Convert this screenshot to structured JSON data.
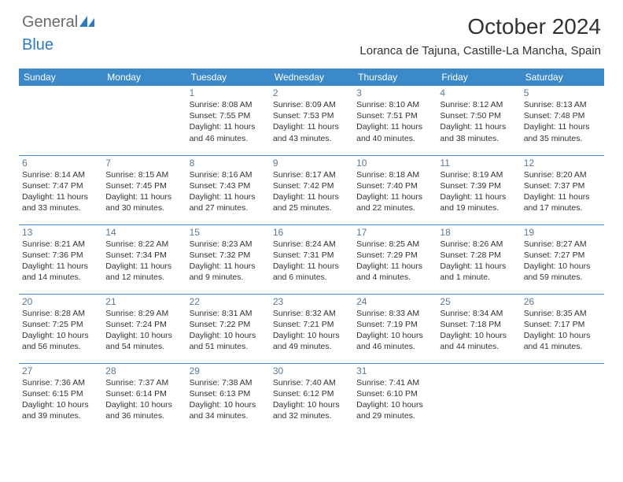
{
  "logo": {
    "text1": "General",
    "text2": "Blue"
  },
  "title": "October 2024",
  "location": "Loranca de Tajuna, Castille-La Mancha, Spain",
  "colors": {
    "header_bg": "#3b89c9",
    "header_text": "#ffffff",
    "daynum": "#5a7a95",
    "body_text": "#333333",
    "logo_gray": "#6a6a6a",
    "logo_blue": "#2d7bbf",
    "border": "#3b89c9",
    "page_bg": "#ffffff"
  },
  "weekdays": [
    "Sunday",
    "Monday",
    "Tuesday",
    "Wednesday",
    "Thursday",
    "Friday",
    "Saturday"
  ],
  "weeks": [
    [
      null,
      null,
      {
        "n": "1",
        "sr": "Sunrise: 8:08 AM",
        "ss": "Sunset: 7:55 PM",
        "d1": "Daylight: 11 hours",
        "d2": "and 46 minutes."
      },
      {
        "n": "2",
        "sr": "Sunrise: 8:09 AM",
        "ss": "Sunset: 7:53 PM",
        "d1": "Daylight: 11 hours",
        "d2": "and 43 minutes."
      },
      {
        "n": "3",
        "sr": "Sunrise: 8:10 AM",
        "ss": "Sunset: 7:51 PM",
        "d1": "Daylight: 11 hours",
        "d2": "and 40 minutes."
      },
      {
        "n": "4",
        "sr": "Sunrise: 8:12 AM",
        "ss": "Sunset: 7:50 PM",
        "d1": "Daylight: 11 hours",
        "d2": "and 38 minutes."
      },
      {
        "n": "5",
        "sr": "Sunrise: 8:13 AM",
        "ss": "Sunset: 7:48 PM",
        "d1": "Daylight: 11 hours",
        "d2": "and 35 minutes."
      }
    ],
    [
      {
        "n": "6",
        "sr": "Sunrise: 8:14 AM",
        "ss": "Sunset: 7:47 PM",
        "d1": "Daylight: 11 hours",
        "d2": "and 33 minutes."
      },
      {
        "n": "7",
        "sr": "Sunrise: 8:15 AM",
        "ss": "Sunset: 7:45 PM",
        "d1": "Daylight: 11 hours",
        "d2": "and 30 minutes."
      },
      {
        "n": "8",
        "sr": "Sunrise: 8:16 AM",
        "ss": "Sunset: 7:43 PM",
        "d1": "Daylight: 11 hours",
        "d2": "and 27 minutes."
      },
      {
        "n": "9",
        "sr": "Sunrise: 8:17 AM",
        "ss": "Sunset: 7:42 PM",
        "d1": "Daylight: 11 hours",
        "d2": "and 25 minutes."
      },
      {
        "n": "10",
        "sr": "Sunrise: 8:18 AM",
        "ss": "Sunset: 7:40 PM",
        "d1": "Daylight: 11 hours",
        "d2": "and 22 minutes."
      },
      {
        "n": "11",
        "sr": "Sunrise: 8:19 AM",
        "ss": "Sunset: 7:39 PM",
        "d1": "Daylight: 11 hours",
        "d2": "and 19 minutes."
      },
      {
        "n": "12",
        "sr": "Sunrise: 8:20 AM",
        "ss": "Sunset: 7:37 PM",
        "d1": "Daylight: 11 hours",
        "d2": "and 17 minutes."
      }
    ],
    [
      {
        "n": "13",
        "sr": "Sunrise: 8:21 AM",
        "ss": "Sunset: 7:36 PM",
        "d1": "Daylight: 11 hours",
        "d2": "and 14 minutes."
      },
      {
        "n": "14",
        "sr": "Sunrise: 8:22 AM",
        "ss": "Sunset: 7:34 PM",
        "d1": "Daylight: 11 hours",
        "d2": "and 12 minutes."
      },
      {
        "n": "15",
        "sr": "Sunrise: 8:23 AM",
        "ss": "Sunset: 7:32 PM",
        "d1": "Daylight: 11 hours",
        "d2": "and 9 minutes."
      },
      {
        "n": "16",
        "sr": "Sunrise: 8:24 AM",
        "ss": "Sunset: 7:31 PM",
        "d1": "Daylight: 11 hours",
        "d2": "and 6 minutes."
      },
      {
        "n": "17",
        "sr": "Sunrise: 8:25 AM",
        "ss": "Sunset: 7:29 PM",
        "d1": "Daylight: 11 hours",
        "d2": "and 4 minutes."
      },
      {
        "n": "18",
        "sr": "Sunrise: 8:26 AM",
        "ss": "Sunset: 7:28 PM",
        "d1": "Daylight: 11 hours",
        "d2": "and 1 minute."
      },
      {
        "n": "19",
        "sr": "Sunrise: 8:27 AM",
        "ss": "Sunset: 7:27 PM",
        "d1": "Daylight: 10 hours",
        "d2": "and 59 minutes."
      }
    ],
    [
      {
        "n": "20",
        "sr": "Sunrise: 8:28 AM",
        "ss": "Sunset: 7:25 PM",
        "d1": "Daylight: 10 hours",
        "d2": "and 56 minutes."
      },
      {
        "n": "21",
        "sr": "Sunrise: 8:29 AM",
        "ss": "Sunset: 7:24 PM",
        "d1": "Daylight: 10 hours",
        "d2": "and 54 minutes."
      },
      {
        "n": "22",
        "sr": "Sunrise: 8:31 AM",
        "ss": "Sunset: 7:22 PM",
        "d1": "Daylight: 10 hours",
        "d2": "and 51 minutes."
      },
      {
        "n": "23",
        "sr": "Sunrise: 8:32 AM",
        "ss": "Sunset: 7:21 PM",
        "d1": "Daylight: 10 hours",
        "d2": "and 49 minutes."
      },
      {
        "n": "24",
        "sr": "Sunrise: 8:33 AM",
        "ss": "Sunset: 7:19 PM",
        "d1": "Daylight: 10 hours",
        "d2": "and 46 minutes."
      },
      {
        "n": "25",
        "sr": "Sunrise: 8:34 AM",
        "ss": "Sunset: 7:18 PM",
        "d1": "Daylight: 10 hours",
        "d2": "and 44 minutes."
      },
      {
        "n": "26",
        "sr": "Sunrise: 8:35 AM",
        "ss": "Sunset: 7:17 PM",
        "d1": "Daylight: 10 hours",
        "d2": "and 41 minutes."
      }
    ],
    [
      {
        "n": "27",
        "sr": "Sunrise: 7:36 AM",
        "ss": "Sunset: 6:15 PM",
        "d1": "Daylight: 10 hours",
        "d2": "and 39 minutes."
      },
      {
        "n": "28",
        "sr": "Sunrise: 7:37 AM",
        "ss": "Sunset: 6:14 PM",
        "d1": "Daylight: 10 hours",
        "d2": "and 36 minutes."
      },
      {
        "n": "29",
        "sr": "Sunrise: 7:38 AM",
        "ss": "Sunset: 6:13 PM",
        "d1": "Daylight: 10 hours",
        "d2": "and 34 minutes."
      },
      {
        "n": "30",
        "sr": "Sunrise: 7:40 AM",
        "ss": "Sunset: 6:12 PM",
        "d1": "Daylight: 10 hours",
        "d2": "and 32 minutes."
      },
      {
        "n": "31",
        "sr": "Sunrise: 7:41 AM",
        "ss": "Sunset: 6:10 PM",
        "d1": "Daylight: 10 hours",
        "d2": "and 29 minutes."
      },
      null,
      null
    ]
  ]
}
